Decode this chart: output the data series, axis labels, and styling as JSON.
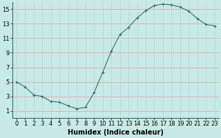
{
  "x": [
    0,
    1,
    2,
    3,
    4,
    5,
    6,
    7,
    8,
    9,
    10,
    11,
    12,
    13,
    14,
    15,
    16,
    17,
    18,
    19,
    20,
    21,
    22,
    23
  ],
  "y": [
    5.0,
    4.3,
    3.2,
    3.0,
    2.3,
    2.2,
    1.7,
    1.3,
    1.5,
    3.5,
    6.3,
    9.2,
    11.5,
    12.5,
    13.8,
    14.8,
    15.5,
    15.7,
    15.6,
    15.3,
    14.7,
    13.7,
    12.9,
    12.7
  ],
  "line_color": "#2d6e65",
  "marker": "+",
  "marker_size": 3,
  "bg_color": "#c8eae6",
  "grid_color_h": "#e8a0a0",
  "grid_color_v": "#b8d8d4",
  "xlabel": "Humidex (Indice chaleur)",
  "xlabel_fontsize": 7,
  "tick_fontsize": 6,
  "ylim": [
    0,
    16
  ],
  "xlim": [
    -0.5,
    23.5
  ],
  "yticks": [
    1,
    3,
    5,
    7,
    9,
    11,
    13,
    15
  ],
  "xticks": [
    0,
    1,
    2,
    3,
    4,
    5,
    6,
    7,
    8,
    9,
    10,
    11,
    12,
    13,
    14,
    15,
    16,
    17,
    18,
    19,
    20,
    21,
    22,
    23
  ]
}
